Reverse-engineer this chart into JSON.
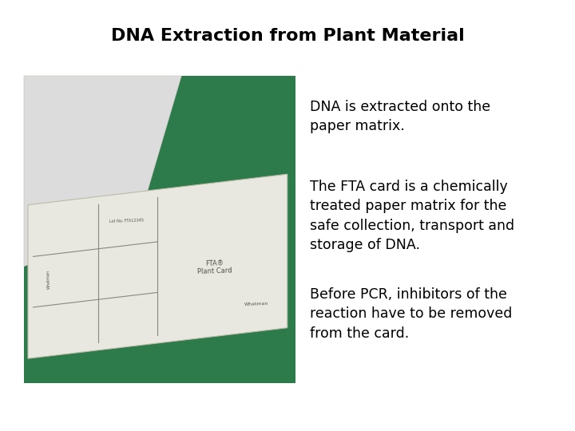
{
  "title": "DNA Extraction from Plant Material",
  "title_fontsize": 16,
  "title_fontweight": "bold",
  "title_color": "#000000",
  "background_color": "#ffffff",
  "text_color": "#000000",
  "text_fontsize": 12.5,
  "paragraphs": [
    "DNA is extracted onto the\npaper matrix.",
    "The FTA card is a chemically\ntreated paper matrix for the\nsafe collection, transport and\nstorage of DNA.",
    "Before PCR, inhibitors of the\nreaction have to be removed\nfrom the card."
  ],
  "photo_bg_color": "#2d7a4a",
  "card_color": "#e8e8e0",
  "cotton_color": "#dcdcdc",
  "grid_color": "#888880",
  "fta_text_color": "#555550"
}
